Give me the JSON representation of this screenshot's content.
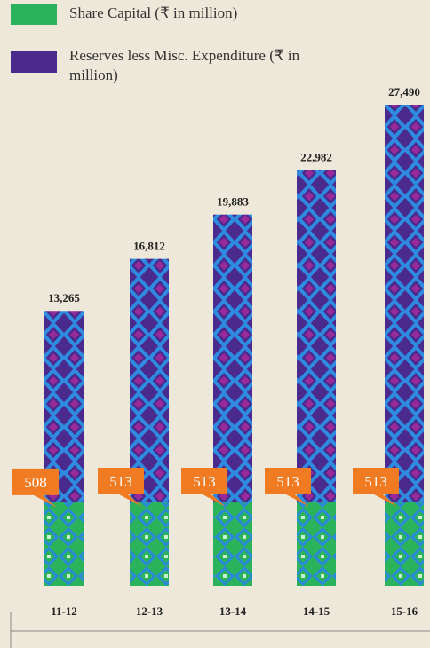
{
  "chart_data": {
    "type": "bar",
    "categories": [
      "11-12",
      "12-13",
      "13-14",
      "14-15",
      "15-16"
    ],
    "series": [
      {
        "name": "Share Capital (₹ in million)",
        "color": "#2bb35c",
        "values": [
          508,
          513,
          513,
          513,
          513
        ]
      },
      {
        "name": "Reserves less Misc. Expenditure (₹ in million)",
        "color": "#4b2a8e",
        "values": [
          13265,
          16812,
          19883,
          22982,
          27490
        ],
        "value_labels": [
          "13,265",
          "16,812",
          "19,883",
          "22,982",
          "27,490"
        ]
      }
    ],
    "label_color": "#f07b22"
  }
}
